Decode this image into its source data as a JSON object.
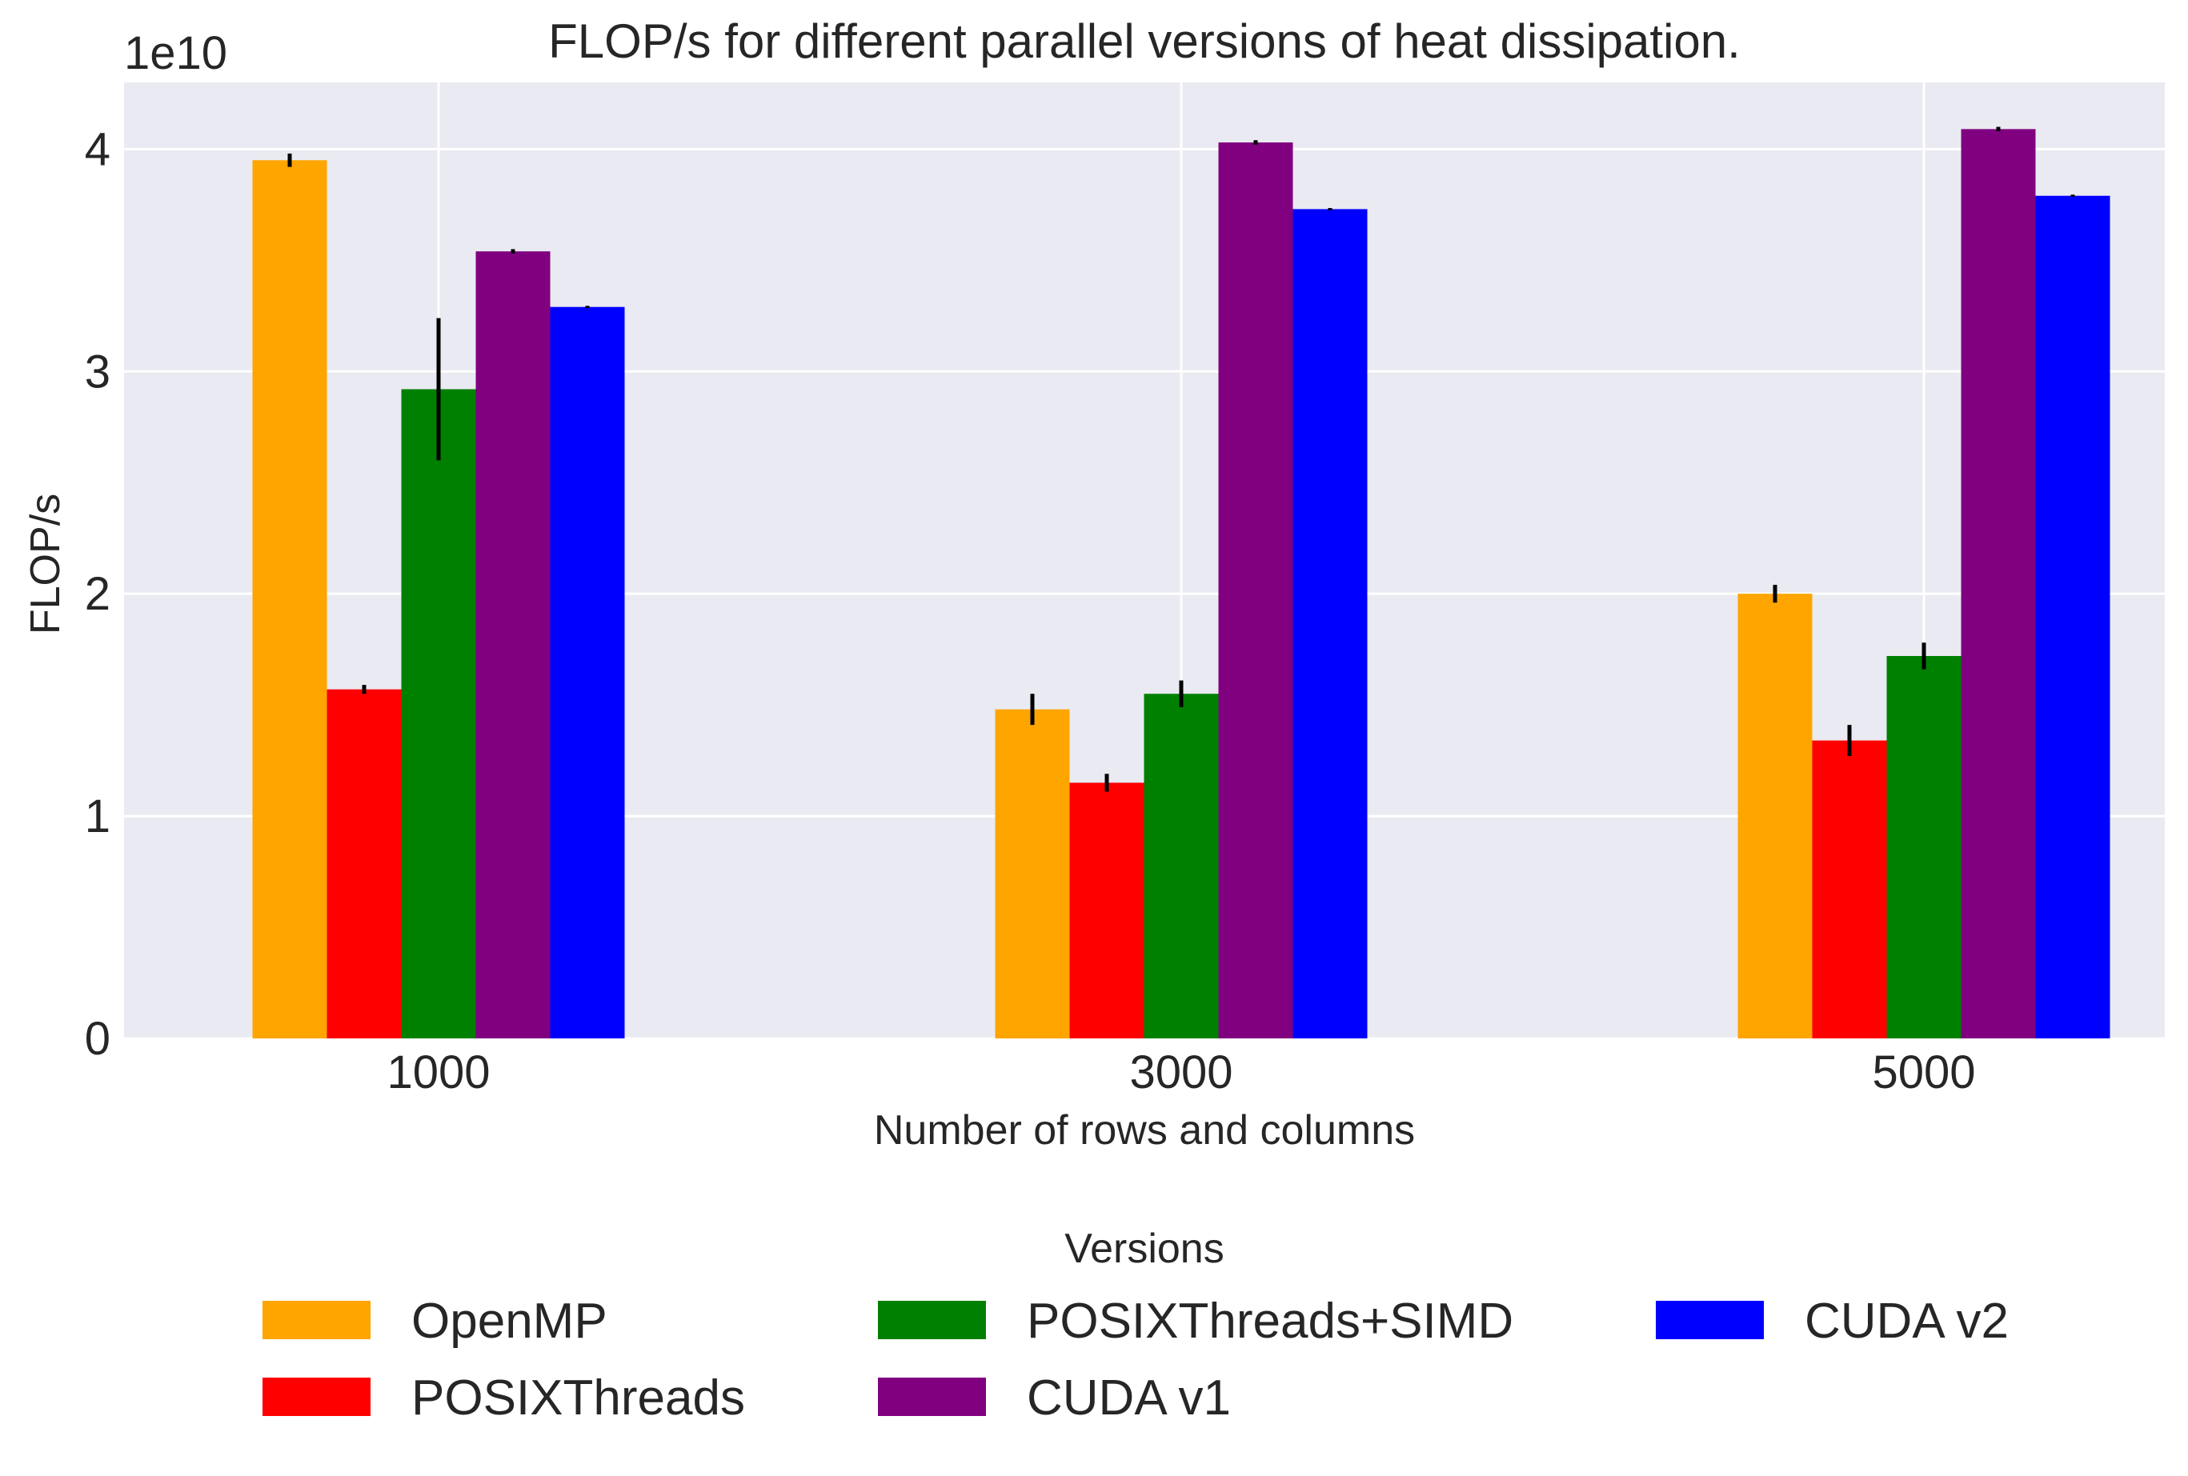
{
  "chart_data": {
    "type": "bar",
    "title": "FLOP/s for different parallel versions of heat dissipation.",
    "xlabel": "Number of rows and columns",
    "ylabel": "FLOP/s",
    "scale_label": "1e10",
    "categories": [
      "1000",
      "3000",
      "5000"
    ],
    "yticks": [
      "0",
      "1",
      "2",
      "3",
      "4"
    ],
    "ytick_values": [
      0,
      1,
      2,
      3,
      4
    ],
    "ylim": [
      0,
      4.3
    ],
    "grid": true,
    "legend": {
      "title": "Versions",
      "placement": "bottom-center",
      "columns": 3
    },
    "series": [
      {
        "name": "OpenMP",
        "color": "#FFA500",
        "values": [
          3.95,
          1.48,
          2.0
        ],
        "errors": [
          0.03,
          0.07,
          0.04
        ]
      },
      {
        "name": "POSIXThreads",
        "color": "#FF0000",
        "values": [
          1.57,
          1.15,
          1.34
        ],
        "errors": [
          0.02,
          0.04,
          0.07
        ]
      },
      {
        "name": "POSIXThreads+SIMD",
        "color": "#008000",
        "values": [
          2.92,
          1.55,
          1.72
        ],
        "errors": [
          0.32,
          0.06,
          0.06
        ]
      },
      {
        "name": "CUDA v1",
        "color": "#800080",
        "values": [
          3.54,
          4.03,
          4.09
        ],
        "errors": [
          0.01,
          0.01,
          0.01
        ]
      },
      {
        "name": "CUDA v2",
        "color": "#0000FF",
        "values": [
          3.29,
          3.73,
          3.79
        ],
        "errors": [
          0.005,
          0.005,
          0.005
        ]
      }
    ],
    "colors": {
      "background": "#EAEAF2",
      "grid": "#FFFFFF",
      "errorbar": "#000000"
    }
  }
}
